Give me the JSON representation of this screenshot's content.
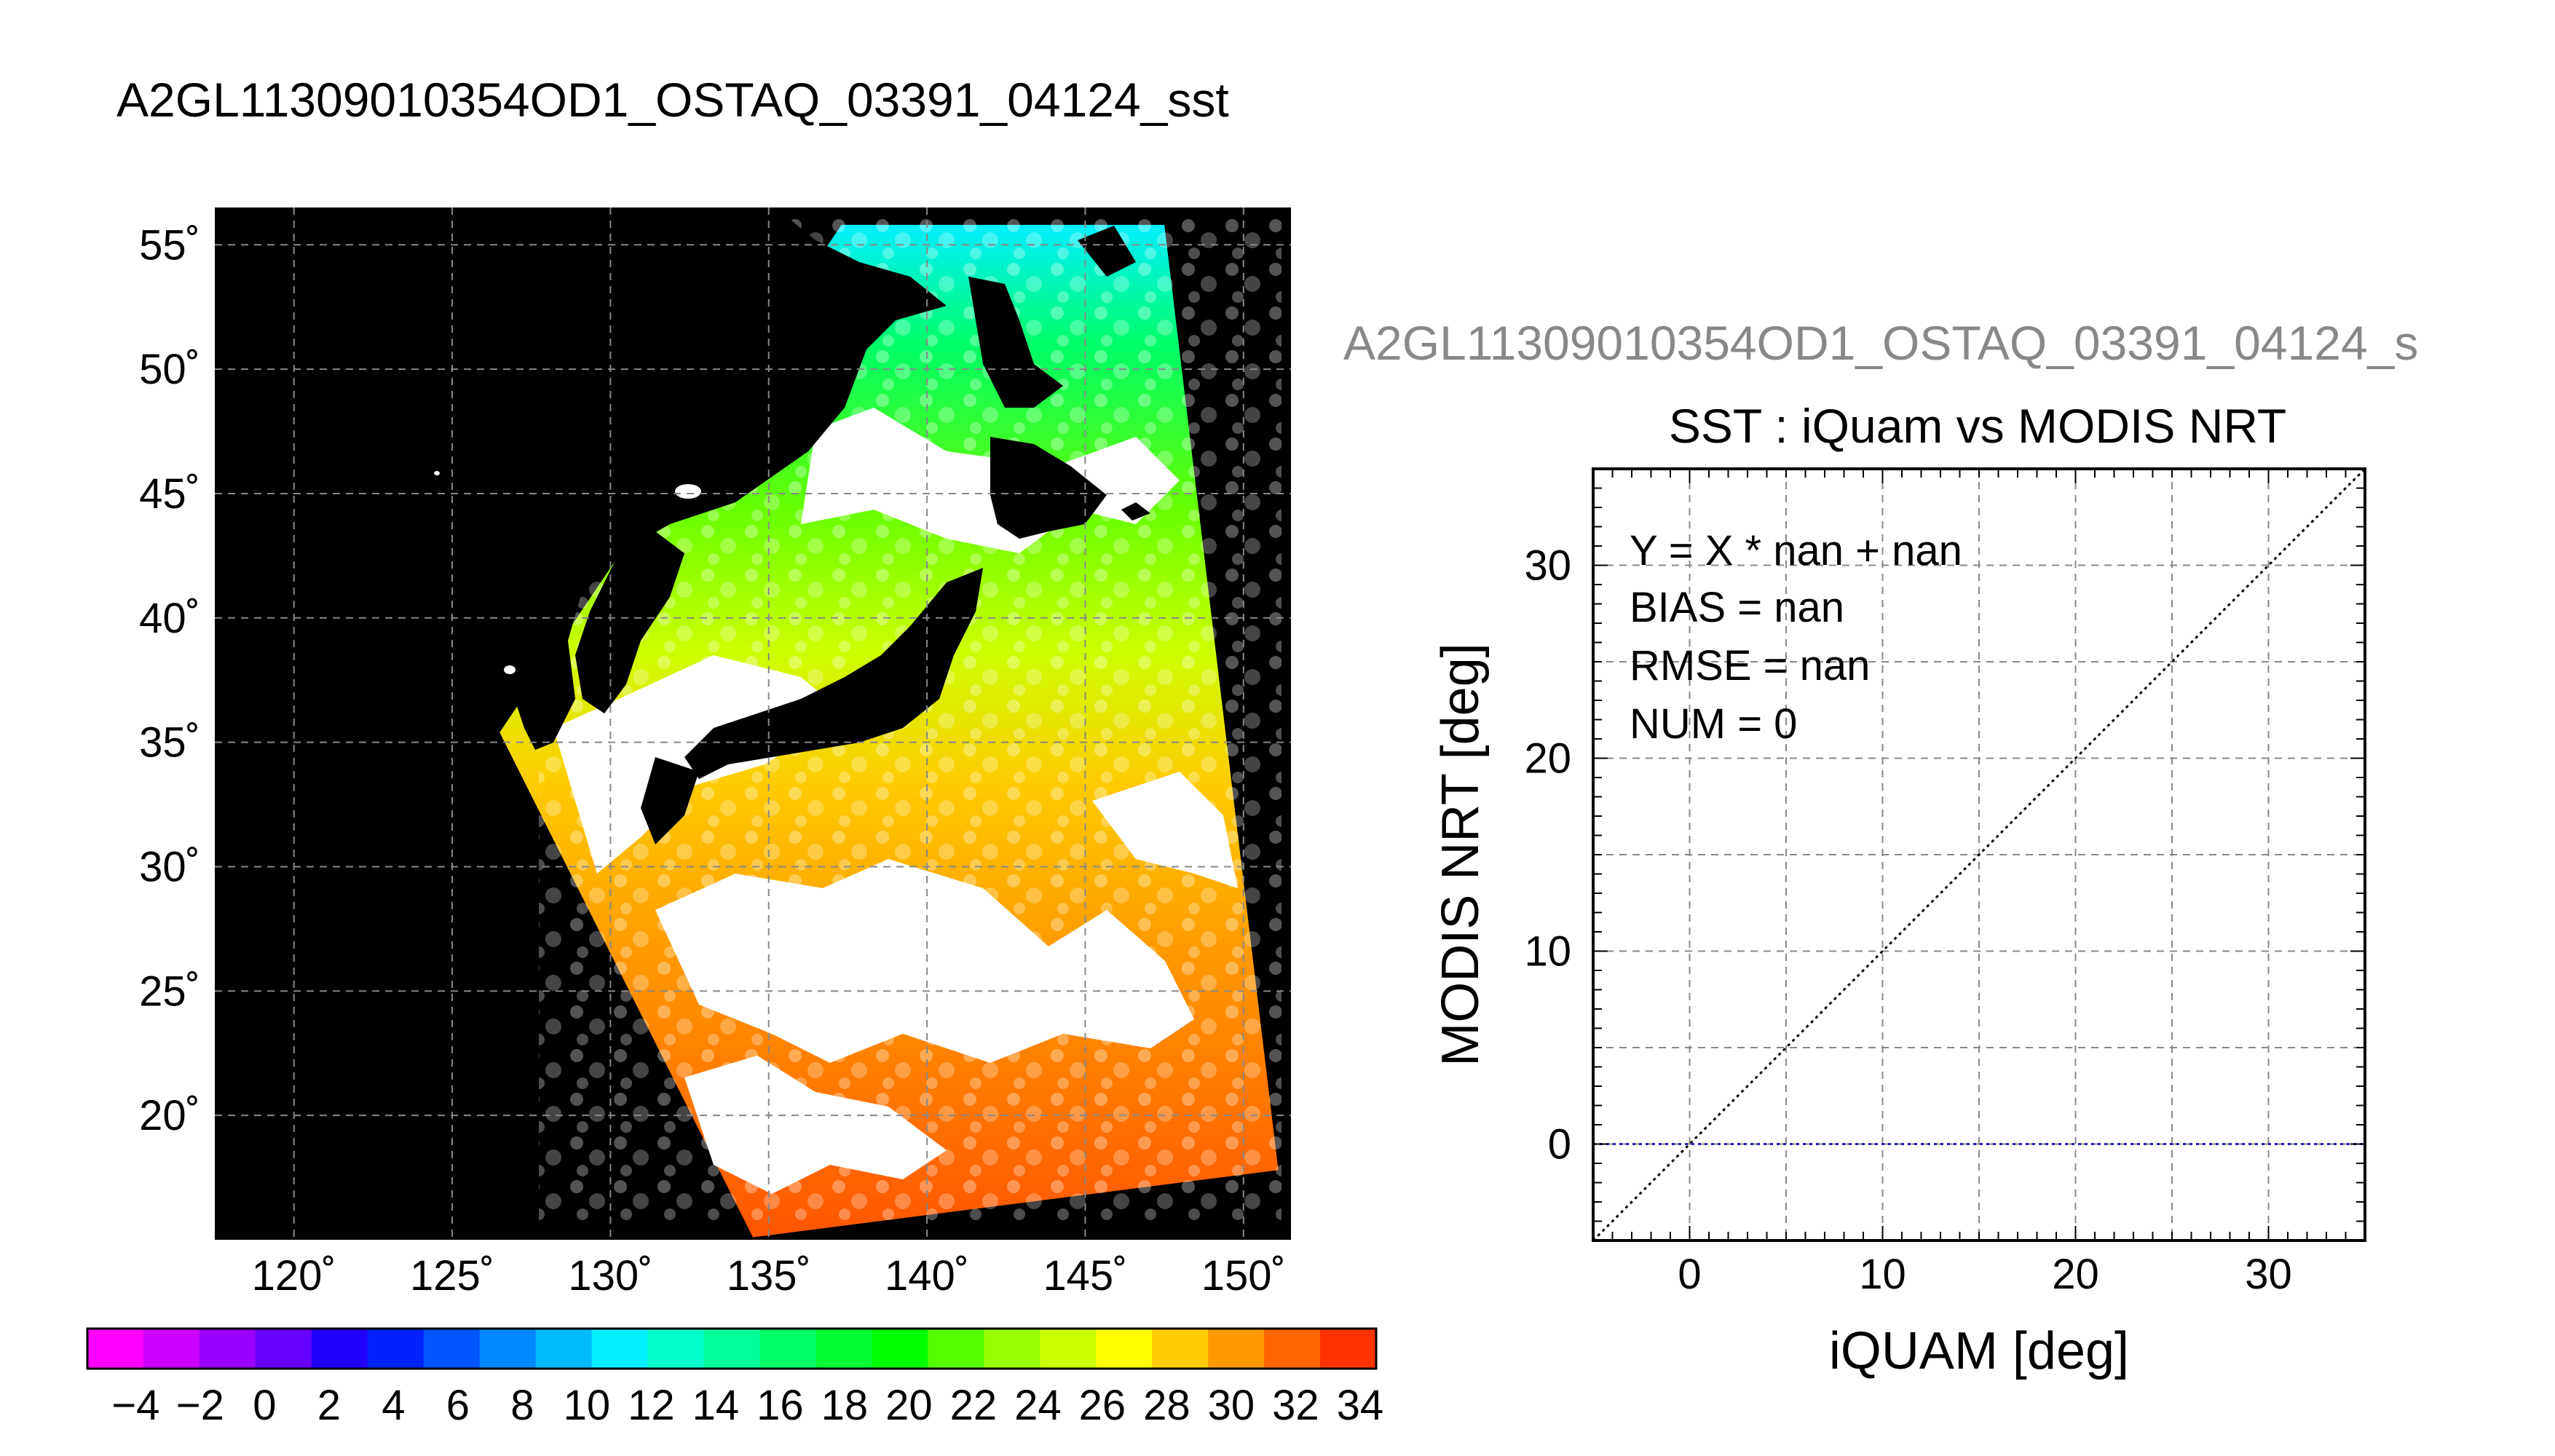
{
  "figure_title": "A2GL11309010354OD1_OSTAQ_03391_04124_sst",
  "chart_data": [
    {
      "type": "heatmap",
      "title": "A2GL11309010354OD1_OSTAQ_03391_04124_sst",
      "xlabel": "",
      "ylabel": "",
      "xlim": [
        117.5,
        151.5
      ],
      "ylim": [
        15,
        56.5
      ],
      "x_ticks": [
        120,
        125,
        130,
        135,
        140,
        145,
        150
      ],
      "x_tick_labels": [
        "120˚",
        "125˚",
        "130˚",
        "135˚",
        "140˚",
        "145˚",
        "150˚"
      ],
      "y_ticks": [
        20,
        25,
        30,
        35,
        40,
        45,
        50,
        55
      ],
      "y_tick_labels": [
        "20˚",
        "25˚",
        "30˚",
        "35˚",
        "40˚",
        "45˚",
        "50˚",
        "55˚"
      ],
      "grid": true,
      "background_color": "#000000",
      "swath_corners_lonlat": [
        [
          134.5,
          15.1
        ],
        [
          126.5,
          35.4
        ],
        [
          137.3,
          55.8
        ],
        [
          147.5,
          55.8
        ],
        [
          151.1,
          17.8
        ]
      ],
      "colorbar": {
        "min": -5,
        "max": 35,
        "step": 2,
        "tick_labels": [
          "-4",
          "-2",
          "0",
          "2",
          "4",
          "6",
          "8",
          "10",
          "12",
          "14",
          "16",
          "18",
          "20",
          "22",
          "24",
          "26",
          "28",
          "30",
          "32",
          "34"
        ],
        "colors": [
          "#ff00ff",
          "#cc00ff",
          "#9900ff",
          "#6600ff",
          "#2200ff",
          "#0022ff",
          "#0055ff",
          "#0088ff",
          "#00bbff",
          "#00eeff",
          "#00ffcc",
          "#00ff99",
          "#00ff66",
          "#00ff33",
          "#00ff00",
          "#55ff00",
          "#99ff00",
          "#ccff00",
          "#ffff00",
          "#ffcc00",
          "#ff9900",
          "#ff6600",
          "#ff3300"
        ]
      }
    },
    {
      "type": "scatter",
      "title": "SST : iQuam vs MODIS NRT",
      "subtitle": "A2GL11309010354OD1_OSTAQ_03391_04124_s",
      "xlabel": "iQUAM [deg]",
      "ylabel": "MODIS NRT [deg]",
      "xlim": [
        -5,
        35
      ],
      "ylim": [
        -5,
        35
      ],
      "x_ticks": [
        0,
        10,
        20,
        30
      ],
      "y_ticks": [
        0,
        10,
        20,
        30
      ],
      "grid": true,
      "stats": [
        "Y = X * nan + nan",
        "BIAS = nan",
        "RMSE = nan",
        "NUM = 0"
      ],
      "points": [],
      "reference_lines": [
        {
          "kind": "one_to_one",
          "x": [
            -5,
            35
          ],
          "y": [
            -5,
            35
          ],
          "color": "#000000",
          "style": "dotted"
        },
        {
          "kind": "zero_bias",
          "x": [
            -5,
            35
          ],
          "y": [
            0,
            0
          ],
          "color": "#2222bb",
          "style": "dotted"
        }
      ]
    }
  ]
}
